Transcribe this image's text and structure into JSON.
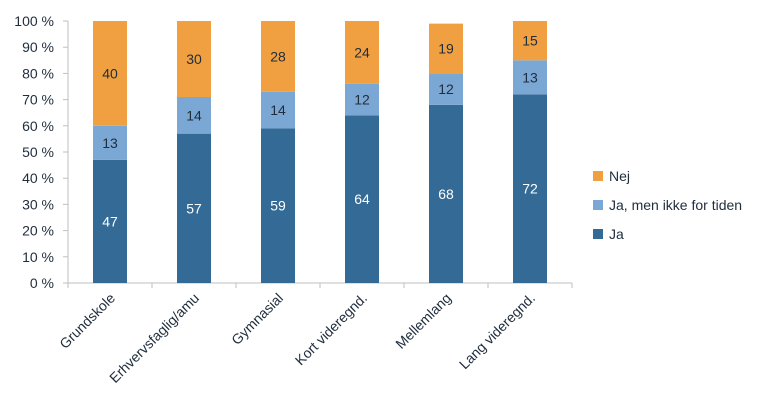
{
  "chart_data": {
    "type": "bar",
    "stacked": true,
    "categories": [
      "Grundskole",
      "Erhvervsfaglig/amu",
      "Gymnasial",
      "Kort videregnd.",
      "Mellemlang",
      "Lang videregnd."
    ],
    "series": [
      {
        "name": "Ja",
        "values": [
          47,
          57,
          59,
          64,
          68,
          72
        ],
        "color": "#336b96",
        "label_color": "#ffffff"
      },
      {
        "name": "Ja, men ikke for tiden",
        "values": [
          13,
          14,
          14,
          12,
          12,
          13
        ],
        "color": "#7ba7d4",
        "label_color": "#1f2d3d"
      },
      {
        "name": "Nej",
        "values": [
          40,
          30,
          28,
          24,
          19,
          15
        ],
        "color": "#f0a040",
        "label_color": "#1f2d3d"
      }
    ],
    "yticks": [
      "0 %",
      "10 %",
      "20 %",
      "30 %",
      "40 %",
      "50 %",
      "60 %",
      "70 %",
      "80 %",
      "90 %",
      "100 %"
    ],
    "ylim": [
      0,
      100
    ],
    "grid": false,
    "legend_position": "right",
    "legend_order": [
      "Nej",
      "Ja, men ikke for tiden",
      "Ja"
    ],
    "xlabel_rotation_deg": -45
  }
}
